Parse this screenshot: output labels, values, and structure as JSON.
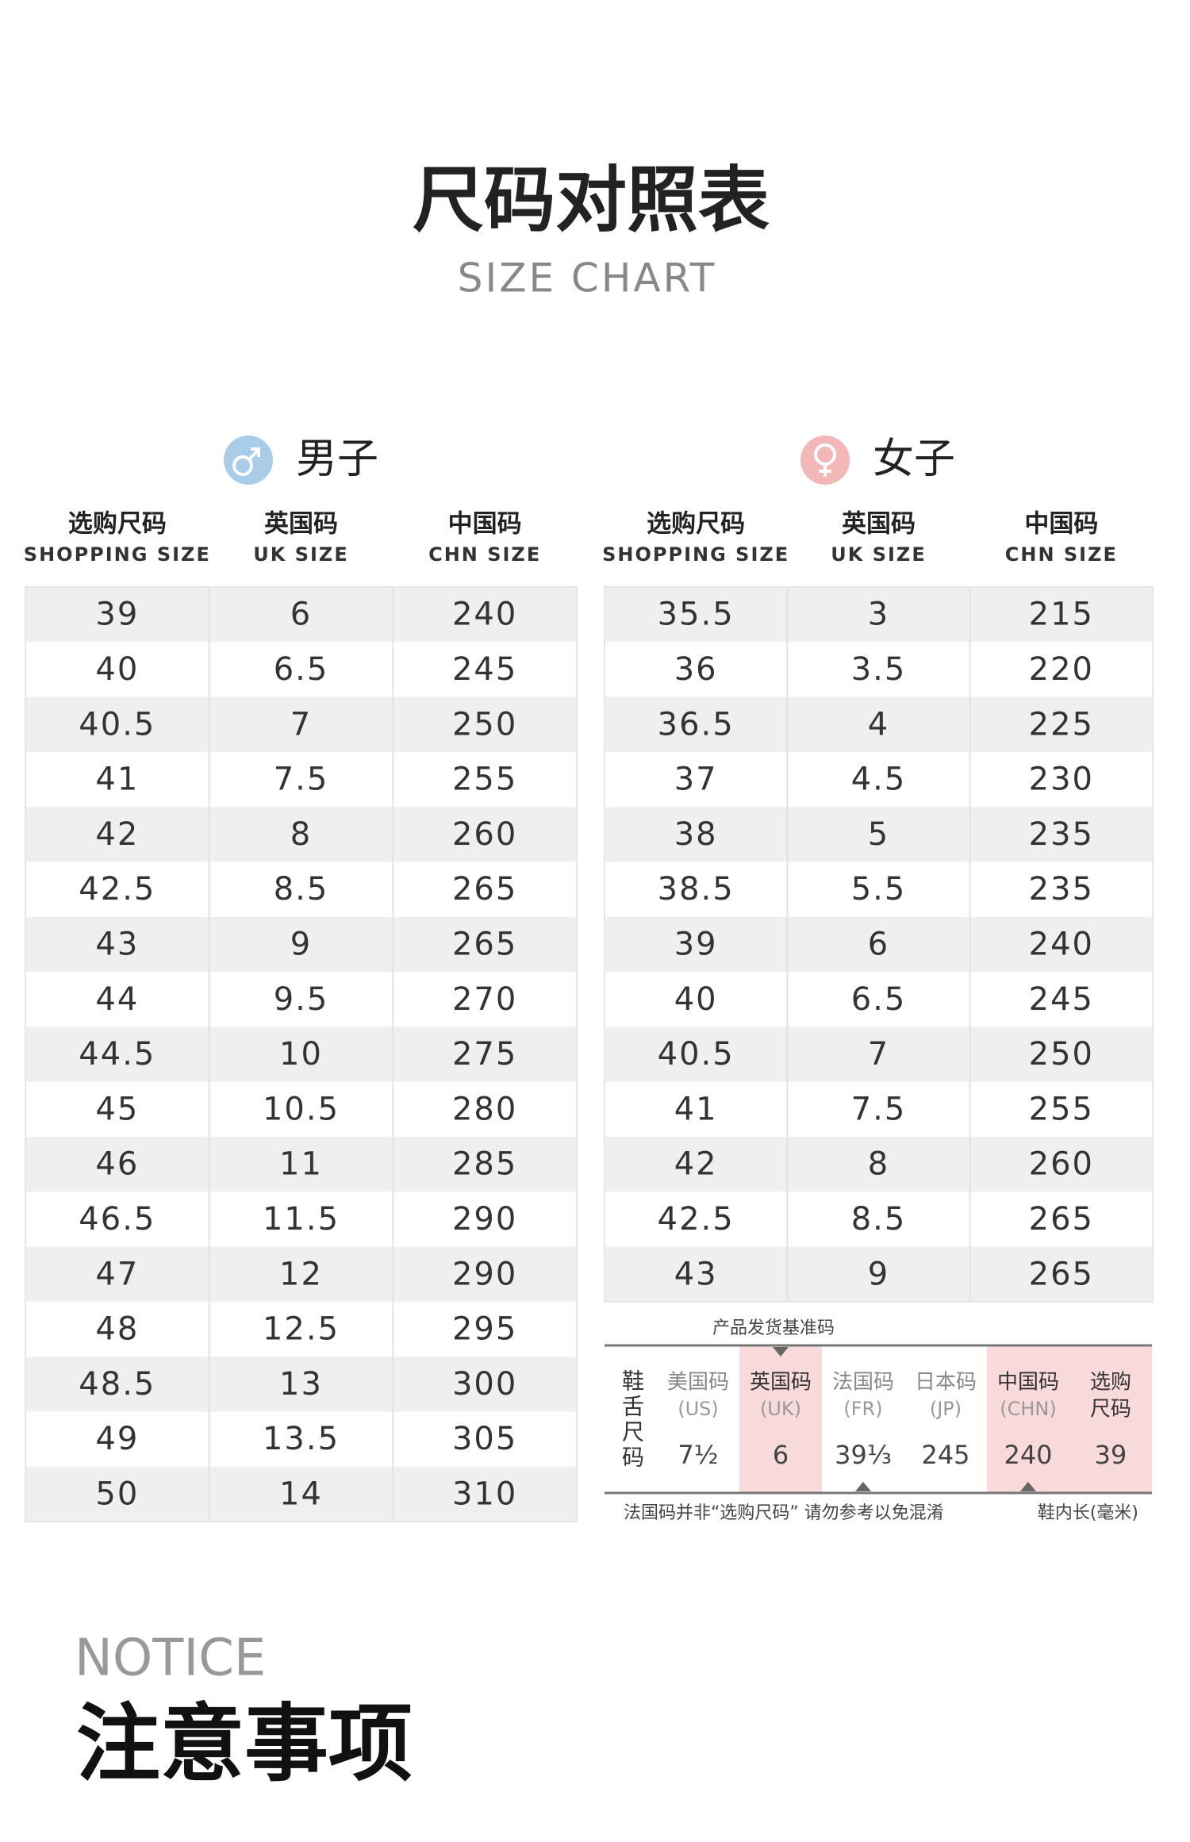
{
  "header": {
    "title": "尺码对照表",
    "subtitle": "SIZE CHART"
  },
  "men": {
    "label": "男子",
    "headers": [
      {
        "cn": "选购尺码",
        "en": "SHOPPING SIZE"
      },
      {
        "cn": "英国码",
        "en": "UK SIZE"
      },
      {
        "cn": "中国码",
        "en": "CHN SIZE"
      }
    ],
    "rows": [
      [
        39,
        6,
        240
      ],
      [
        40,
        6.5,
        245
      ],
      [
        40.5,
        7,
        250
      ],
      [
        41,
        7.5,
        255
      ],
      [
        42,
        8,
        260
      ],
      [
        42.5,
        8.5,
        265
      ],
      [
        43,
        9,
        265
      ],
      [
        44,
        9.5,
        270
      ],
      [
        44.5,
        10,
        275
      ],
      [
        45,
        10.5,
        280
      ],
      [
        46,
        11,
        285
      ],
      [
        46.5,
        11.5,
        290
      ],
      [
        47,
        12,
        290
      ],
      [
        48,
        12.5,
        295
      ],
      [
        48.5,
        13,
        300
      ],
      [
        49,
        13.5,
        305
      ],
      [
        50,
        14,
        310
      ]
    ]
  },
  "women": {
    "label": "女子",
    "headers": [
      {
        "cn": "选购尺码",
        "en": "SHOPPING SIZE"
      },
      {
        "cn": "英国码",
        "en": "UK SIZE"
      },
      {
        "cn": "中国码",
        "en": "CHN SIZE"
      }
    ],
    "rows": [
      [
        35.5,
        3,
        215
      ],
      [
        36,
        3.5,
        220
      ],
      [
        36.5,
        4,
        225
      ],
      [
        37,
        4.5,
        230
      ],
      [
        38,
        5,
        235
      ],
      [
        38.5,
        5.5,
        235
      ],
      [
        39,
        6,
        240
      ],
      [
        40,
        6.5,
        245
      ],
      [
        40.5,
        7,
        250
      ],
      [
        41,
        7.5,
        255
      ],
      [
        42,
        8,
        260
      ],
      [
        42.5,
        8.5,
        265
      ],
      [
        43,
        9,
        265
      ]
    ]
  },
  "reference": {
    "caption": "产品发货基准码",
    "side_label": "鞋舌尺码",
    "columns": [
      {
        "cn": "美国码",
        "en": "(US)",
        "value": "7½"
      },
      {
        "cn": "英国码",
        "en": "(UK)",
        "value": "6"
      },
      {
        "cn": "法国码",
        "en": "(FR)",
        "value": "39⅓"
      },
      {
        "cn": "日本码",
        "en": "(JP)",
        "value": "245"
      },
      {
        "cn": "中国码",
        "en": "(CHN)",
        "value": "240"
      },
      {
        "cn": "选购",
        "cn2": "尺码",
        "value": "39"
      }
    ],
    "note_left": "法国码并非“选购尺码” 请勿参考以免混淆",
    "note_right": "鞋内长(毫米)"
  },
  "notice": {
    "en": "NOTICE",
    "cn": "注意事项"
  }
}
